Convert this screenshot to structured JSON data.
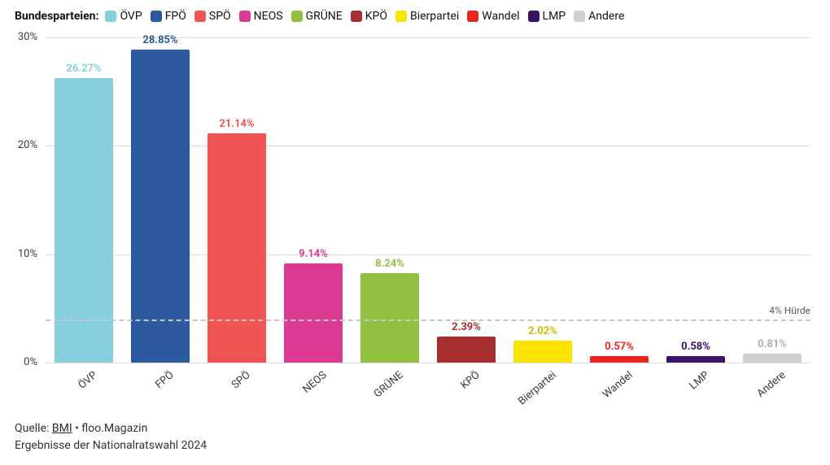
{
  "legendTitle": "Bundesparteien:",
  "chart": {
    "type": "bar",
    "ylim": [
      0,
      30
    ],
    "ytick_step": 10,
    "ytick_suffix": "%",
    "grid_color": "#dcdcdc",
    "background_color": "#ffffff",
    "bar_width": 0.76,
    "label_fontsize": 13,
    "value_fontsize": 13,
    "threshold": {
      "value": 4,
      "label": "4% Hürde",
      "color": "#c8c8c8"
    },
    "series": [
      {
        "name": "ÖVP",
        "value": 26.27,
        "color": "#86d0dd",
        "label_color": "#86d0dd"
      },
      {
        "name": "FPÖ",
        "value": 28.85,
        "color": "#2d5a9f",
        "label_color": "#2d5a9f"
      },
      {
        "name": "SPÖ",
        "value": 21.14,
        "color": "#f05453",
        "label_color": "#f05453"
      },
      {
        "name": "NEOS",
        "value": 9.14,
        "color": "#dc3b93",
        "label_color": "#dc3b93"
      },
      {
        "name": "GRÜNE",
        "value": 8.24,
        "color": "#92c142",
        "label_color": "#92c142"
      },
      {
        "name": "KPÖ",
        "value": 2.39,
        "color": "#a72f30",
        "label_color": "#a72f30"
      },
      {
        "name": "Bierpartei",
        "value": 2.02,
        "color": "#fbe400",
        "label_color": "#d2bb00"
      },
      {
        "name": "Wandel",
        "value": 0.57,
        "color": "#e8251d",
        "label_color": "#e8251d"
      },
      {
        "name": "LMP",
        "value": 0.58,
        "color": "#3b126a",
        "label_color": "#3b126a"
      },
      {
        "name": "Andere",
        "value": 0.81,
        "color": "#d0d0d0",
        "label_color": "#b0b0b0"
      }
    ]
  },
  "footer": {
    "prefix": "Quelle: ",
    "source_link": "BMI",
    "suffix": " • floo.Magazin",
    "line2": "Ergebnisse der Nationalratswahl 2024"
  }
}
